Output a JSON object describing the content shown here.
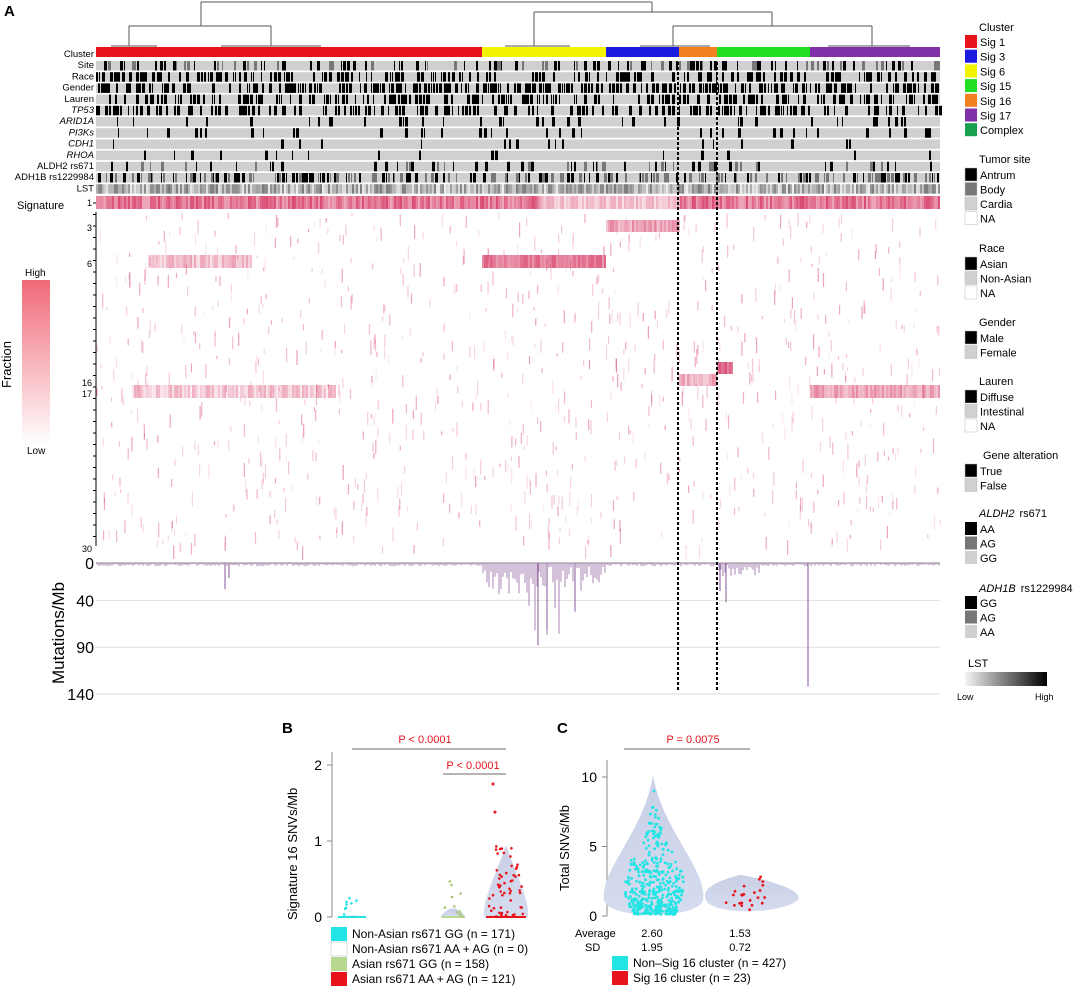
{
  "panel_a": {
    "letter": "A",
    "track_labels": [
      "Cluster",
      "Site",
      "Race",
      "Gender",
      "Lauren",
      "TP53",
      "ARID1A",
      "PI3Ks",
      "CDH1",
      "RHOA",
      "ALDH2 rs671",
      "ADH1B rs1229984",
      "LST"
    ],
    "track_labels_italic": [
      false,
      false,
      false,
      false,
      false,
      true,
      true,
      true,
      true,
      true,
      false,
      false,
      false
    ],
    "signature_label": "Signature",
    "signature_ticks": [
      "1",
      "3",
      "6",
      "16",
      "17",
      "30"
    ],
    "fraction_label": "Fraction",
    "fraction_high": "High",
    "fraction_low": "Low",
    "mut_axis_title": "Mutations/Mb",
    "mut_ticks": [
      "0",
      "40",
      "90",
      "140"
    ]
  },
  "legend": {
    "cluster_title": "Cluster",
    "clusters": [
      {
        "label": "Sig 1",
        "color": "#e8141c"
      },
      {
        "label": "Sig 3",
        "color": "#1c1ce0"
      },
      {
        "label": "Sig 6",
        "color": "#f4f400"
      },
      {
        "label": "Sig 15",
        "color": "#22dd22"
      },
      {
        "label": "Sig 16",
        "color": "#f08020"
      },
      {
        "label": "Sig 17",
        "color": "#8030a8"
      },
      {
        "label": "Complex",
        "color": "#18a050"
      }
    ],
    "tumor_site_title": "Tumor site",
    "tumor_site": [
      "Antrum",
      "Body",
      "Cardia",
      "NA"
    ],
    "race_title": "Race",
    "race": [
      "Asian",
      "Non-Asian",
      "NA"
    ],
    "gender_title": "Gender",
    "gender": [
      "Male",
      "Female"
    ],
    "lauren_title": "Lauren",
    "lauren": [
      "Diffuse",
      "Intestinal",
      "NA"
    ],
    "gene_title": "Gene alteration",
    "gene": [
      "True",
      "False"
    ],
    "aldh2_title_gene": "ALDH2",
    "aldh2_title_rs": "rs671",
    "aldh2": [
      "AA",
      "AG",
      "GG"
    ],
    "adh1b_title_gene": "ADH1B",
    "adh1b_title_rs": "rs1229984",
    "adh1b": [
      "GG",
      "AG",
      "AA"
    ],
    "lst_title": "LST",
    "lst_low": "Low",
    "lst_high": "High"
  },
  "panel_b": {
    "letter": "B",
    "ylabel": "Signature 16 SNVs/Mb",
    "yticks": [
      "0",
      "1",
      "2"
    ],
    "p_main": "P < 0.0001",
    "p_sub": "P < 0.0001",
    "legend": [
      {
        "label": "Non-Asian rs671 GG (n = 171)",
        "color": "#22e4e4"
      },
      {
        "label": "Non-Asian rs671 AA + AG (n = 0)",
        "color": "#ffffff"
      },
      {
        "label": "Asian rs671 GG (n = 158)",
        "color": "#b8d890"
      },
      {
        "label": "Asian rs671 AA + AG (n = 121)",
        "color": "#e8141c"
      }
    ]
  },
  "panel_c": {
    "letter": "C",
    "ylabel": "Total SNVs/Mb",
    "yticks": [
      "0",
      "5",
      "10"
    ],
    "p_value": "P = 0.0075",
    "average_label": "Average",
    "sd_label": "SD",
    "averages": [
      "2.60",
      "1.53"
    ],
    "sds": [
      "1.95",
      "0.72"
    ],
    "legend": [
      {
        "label": "Non–Sig 16 cluster (n = 427)",
        "color": "#22e4e4"
      },
      {
        "label": "Sig 16 cluster (n = 23)",
        "color": "#e8141c"
      }
    ]
  },
  "chart_data": [
    {
      "type": "heatmap",
      "title": "",
      "rows": [
        "Signature 1",
        "Signature 3",
        "Signature 6",
        "Signature 16",
        "Signature 17"
      ],
      "cluster_order": [
        "Sig 1",
        "Sig 6",
        "Sig 3",
        "Sig 16",
        "Sig 15",
        "Sig 17"
      ],
      "ylabel": "Mutations/Mb",
      "ylim": [
        0,
        140
      ]
    },
    {
      "type": "scatter",
      "categories": [
        "Non-Asian rs671 GG",
        "Non-Asian rs671 AA + AG",
        "Asian rs671 GG",
        "Asian rs671 AA + AG"
      ],
      "n": [
        171,
        0,
        158,
        121
      ],
      "ylabel": "Signature 16 SNVs/Mb",
      "ylim": [
        0,
        2.1
      ],
      "max_values": [
        0.25,
        0,
        0.55,
        1.75
      ]
    },
    {
      "type": "scatter",
      "categories": [
        "Non–Sig 16 cluster",
        "Sig 16 cluster"
      ],
      "n": [
        427,
        23
      ],
      "average": [
        2.6,
        1.53
      ],
      "sd": [
        1.95,
        0.72
      ],
      "ylabel": "Total SNVs/Mb",
      "ylim": [
        0,
        11
      ]
    }
  ]
}
